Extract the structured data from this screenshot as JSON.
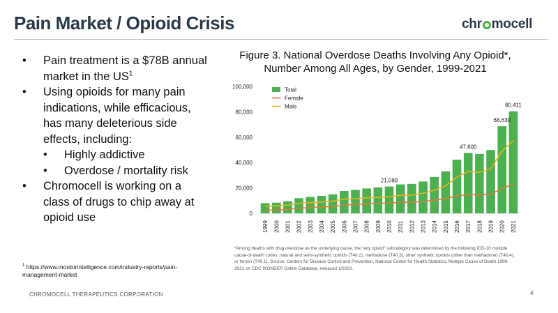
{
  "header": {
    "title": "Pain Market / Opioid Crisis",
    "logo": {
      "part1": "chr",
      "part2": "mocell",
      "accent_color": "#4caf50"
    }
  },
  "bullets": {
    "b1_text": "Pain treatment is a $78B annual market in the US",
    "b1_sup": "1",
    "b2_text": "Using opioids for many pain indications, while efficacious, has many deleterious side effects, including:",
    "b2_sub1": "Highly addictive",
    "b2_sub2": "Overdose / mortality risk",
    "b3_text": "Chromocell is working on a class of drugs to chip away at opioid use"
  },
  "footnote": {
    "marker": "1",
    "text": "https://www.mordorintelligence.com/industry-reports/pain-management-market"
  },
  "chart_title": "Figure 3. National Overdose Deaths Involving Any Opioid*, Number Among All Ages, by Gender, 1999-2021",
  "chart_data": {
    "type": "bar",
    "title": "Figure 3. National Overdose Deaths Involving Any Opioid*, Number Among All Ages, by Gender, 1999-2021",
    "categories": [
      "1999",
      "2000",
      "2001",
      "2002",
      "2003",
      "2004",
      "2005",
      "2006",
      "2007",
      "2008",
      "2009",
      "2010",
      "2011",
      "2012",
      "2013",
      "2014",
      "2015",
      "2016",
      "2017",
      "2018",
      "2019",
      "2020",
      "2021"
    ],
    "series": [
      {
        "name": "Total",
        "kind": "bar",
        "color": "#4caf50",
        "values": [
          8050,
          8407,
          9496,
          11920,
          12940,
          13756,
          14918,
          17545,
          18516,
          19582,
          20422,
          21089,
          22784,
          23166,
          25052,
          28647,
          33091,
          42249,
          47600,
          46802,
          49860,
          68630,
          80411
        ]
      },
      {
        "name": "Female",
        "kind": "line",
        "color": "#e07b39",
        "values": [
          2400,
          2600,
          3100,
          4000,
          4500,
          4900,
          5300,
          6400,
          7000,
          7400,
          7800,
          8100,
          8600,
          8800,
          9300,
          10400,
          11500,
          13700,
          14700,
          14500,
          15000,
          19600,
          23000
        ]
      },
      {
        "name": "Male",
        "kind": "line",
        "color": "#e6b41e",
        "values": [
          5650,
          5800,
          6400,
          7900,
          8400,
          8900,
          9600,
          11100,
          11500,
          12200,
          12600,
          13000,
          14200,
          14400,
          15800,
          18200,
          21600,
          28500,
          32900,
          32300,
          34900,
          49000,
          57400
        ]
      }
    ],
    "data_labels": [
      {
        "category": "2010",
        "text": "21,089"
      },
      {
        "category": "2017",
        "text": "47,600"
      },
      {
        "category": "2020",
        "text": "68,630"
      },
      {
        "category": "2021",
        "text": "80,411"
      }
    ],
    "yticks": [
      "0",
      "20,000",
      "40,000",
      "60,000",
      "80,000",
      "100,000"
    ],
    "ylim": [
      0,
      100000
    ],
    "grid": false,
    "legend": {
      "position": "top-left",
      "entries": [
        "Total",
        "Female",
        "Male"
      ]
    },
    "xlabel": "",
    "ylabel": ""
  },
  "source_note": "*Among deaths with drug overdose as the underlying cause, the “any opioid” subcategory was determined by the following ICD-10 multiple cause-of-death codes: natural and semi-synthetic opioids (T40.2), methadone (T40.3), other synthetic opioids (other than methadone) (T40.4), or heroin (T40.1). Source: Centers for Disease Control and Prevention, National Center for Health Statistics. Multiple Cause of Death 1999-2021 on CDC WONDER Online Database, released 1/2023.",
  "footer": {
    "company": "CHROMOCELL THERAPEUTICS CORPORATION",
    "page": "4"
  }
}
